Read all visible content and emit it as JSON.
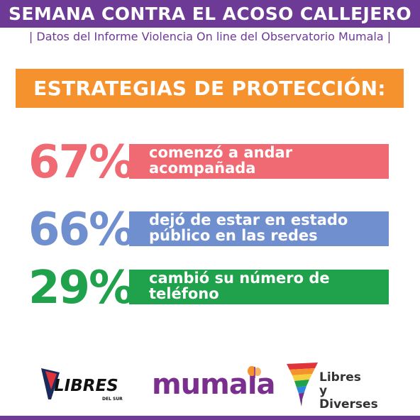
{
  "header": {
    "title": "SEMANA CONTRA EL ACOSO CALLEJERO",
    "subtitle": "| Datos del Informe Violencia On line del Observatorio Mumala |"
  },
  "banner": {
    "label": "ESTRATEGIAS DE PROTECCIÓN:"
  },
  "stats": [
    {
      "percent": "67%",
      "line1": "comenzó a andar",
      "line2": "acompañada",
      "value": 67,
      "color": "#f06a74"
    },
    {
      "percent": "66%",
      "line1": "dejó de estar en estado",
      "line2": "público en las redes",
      "value": 66,
      "color": "#6f8fcf"
    },
    {
      "percent": "29%",
      "line1": "cambió su número de",
      "line2": "teléfono",
      "value": 29,
      "color": "#1fa24b"
    }
  ],
  "logos": {
    "libres": {
      "name": "LIBRES",
      "sub": "DEL SUR"
    },
    "mumala": {
      "name": "mumala"
    },
    "diverses": {
      "line1": "Libres",
      "line2": "y Diverses"
    }
  },
  "colors": {
    "purple": "#6d3a96",
    "orange": "#f6922e"
  }
}
